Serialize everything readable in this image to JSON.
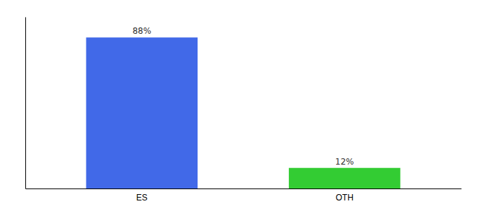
{
  "chart_data": {
    "type": "bar",
    "categories": [
      "ES",
      "OTH"
    ],
    "values": [
      88,
      12
    ],
    "value_labels": [
      "88%",
      "12%"
    ],
    "colors": [
      "#4169e8",
      "#33cc33"
    ],
    "ylim": [
      0,
      100
    ],
    "data_labels": true,
    "tick_labels": "x"
  }
}
